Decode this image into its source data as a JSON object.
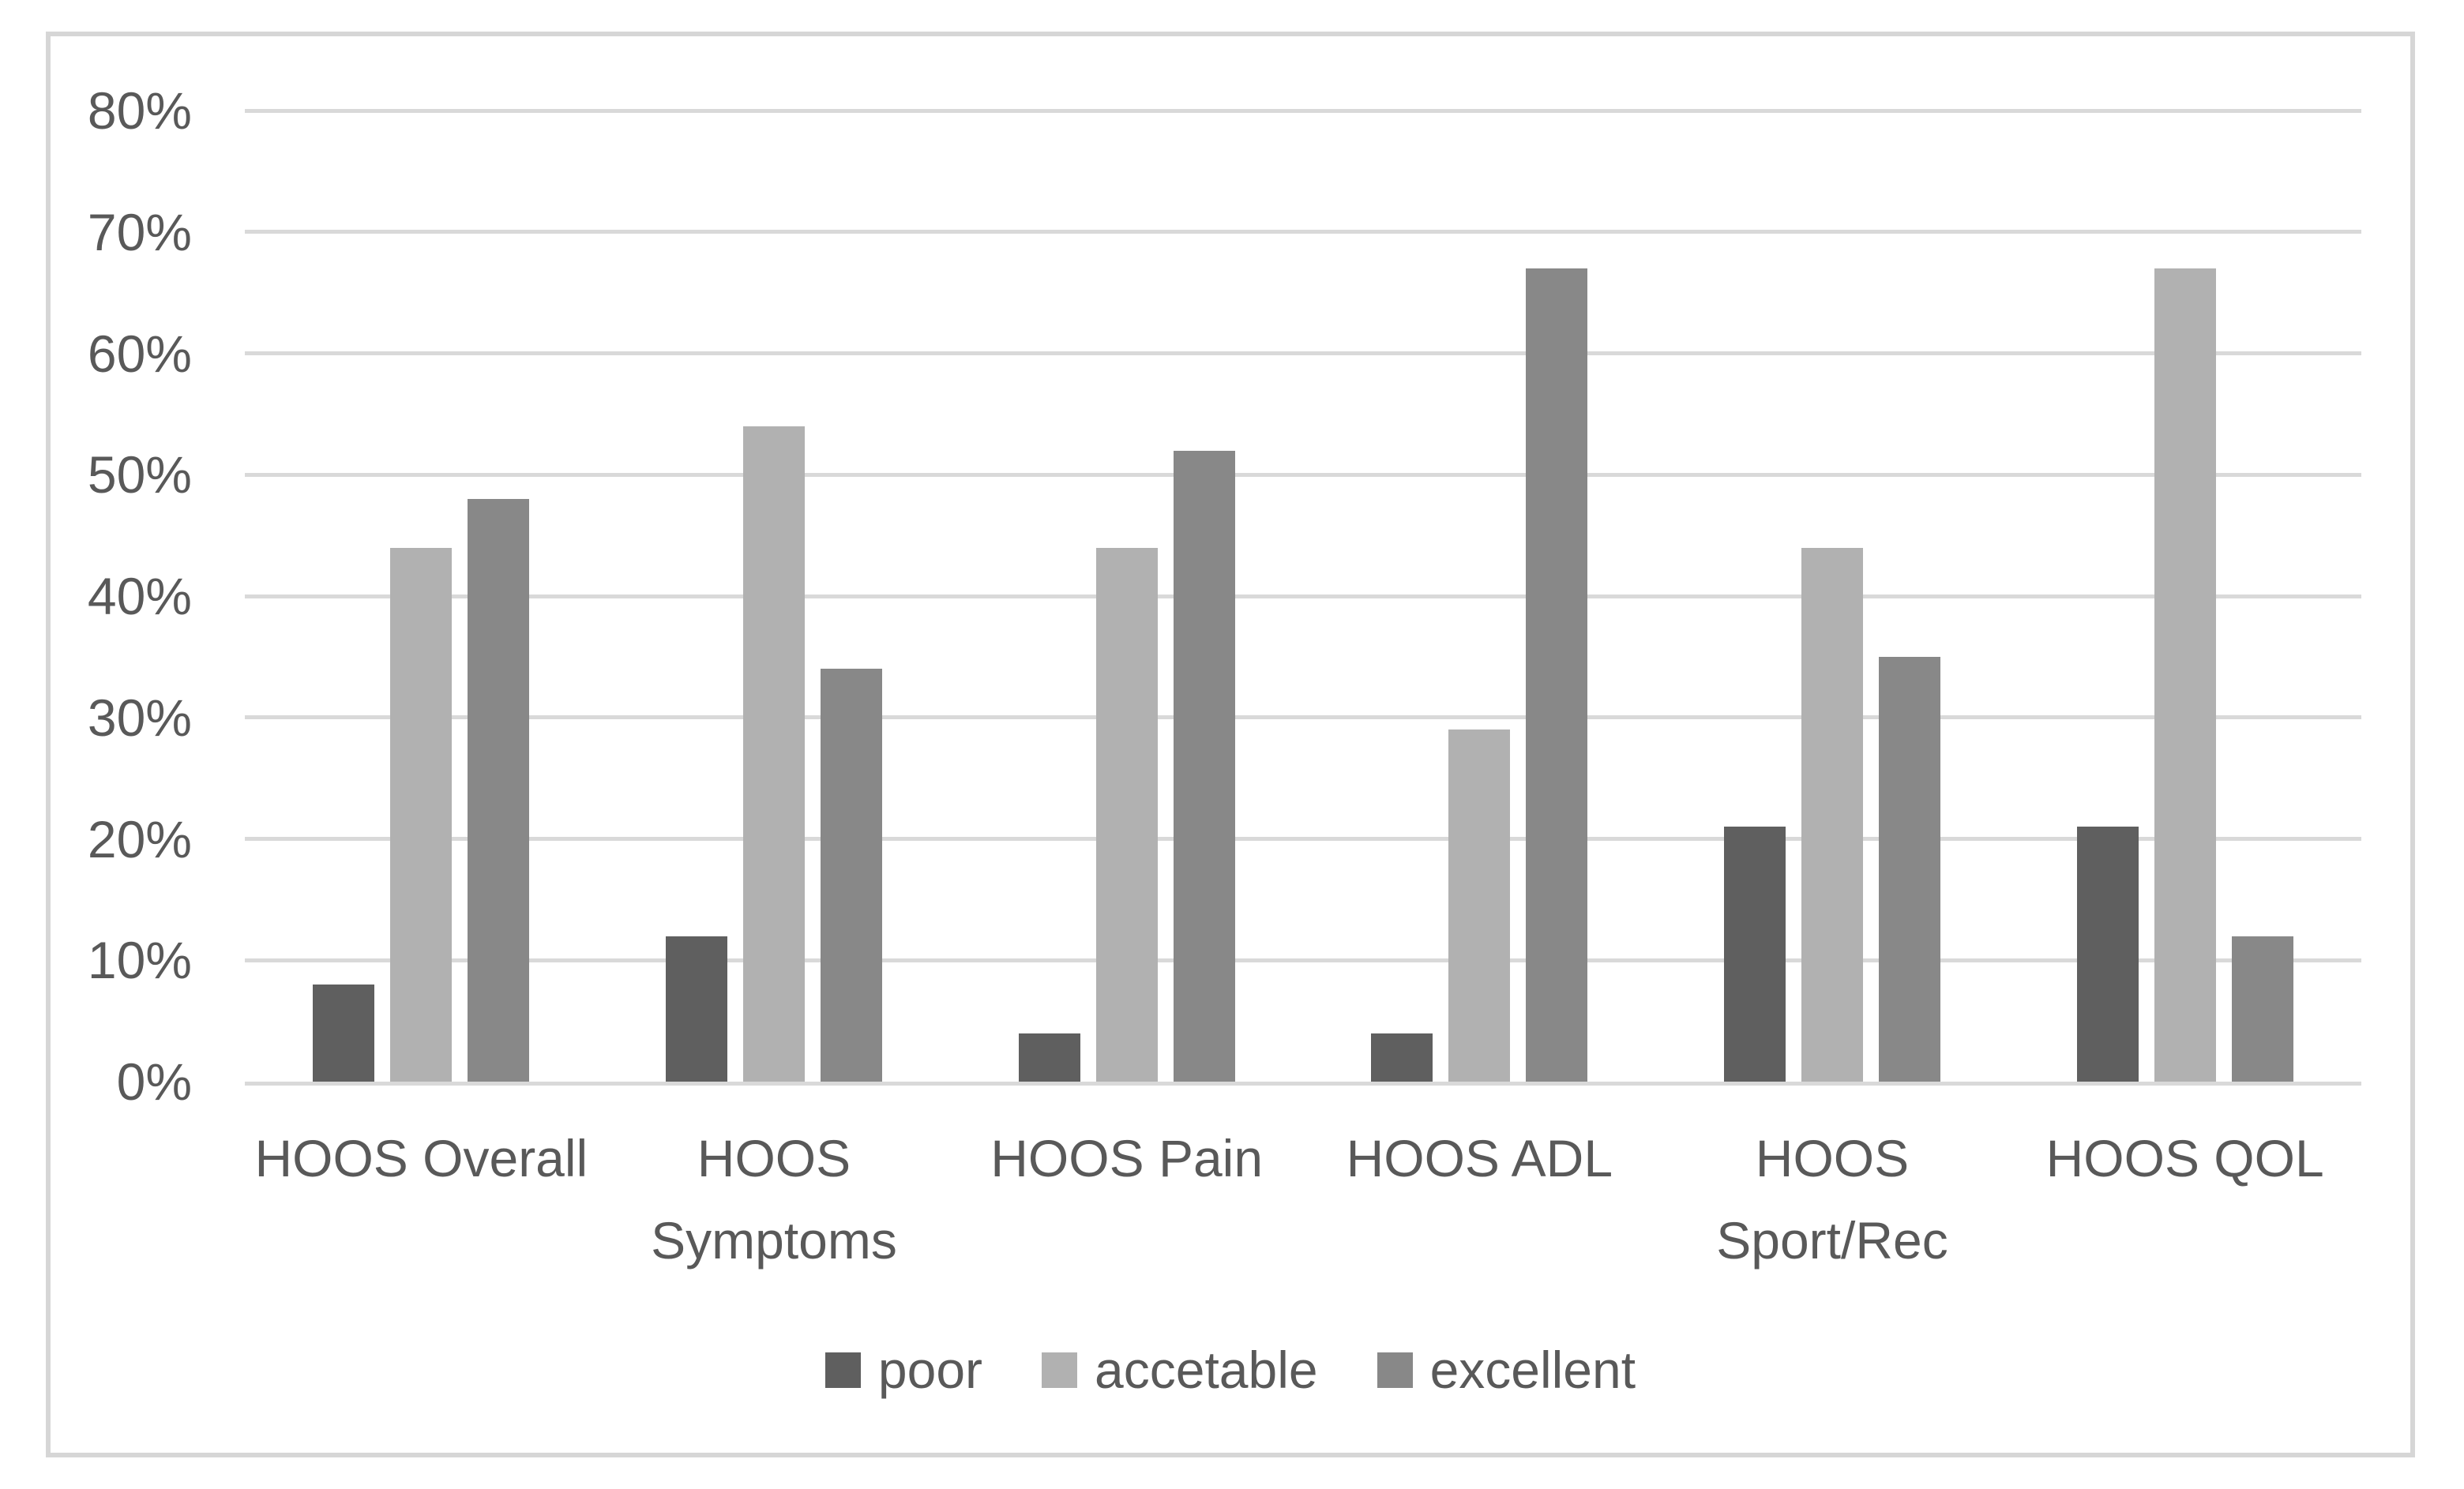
{
  "chart_data": {
    "type": "bar",
    "title": "",
    "xlabel": "",
    "ylabel": "",
    "categories": [
      "HOOS Overall",
      "HOOS Symptoms",
      "HOOS Pain",
      "HOOS ADL",
      "HOOS Sport/Rec",
      "HOOS QOL"
    ],
    "category_display_lines": [
      [
        "HOOS Overall"
      ],
      [
        "HOOS",
        "Symptoms"
      ],
      [
        "HOOS Pain"
      ],
      [
        "HOOS ADL"
      ],
      [
        "HOOS",
        "Sport/Rec"
      ],
      [
        "HOOS QOL"
      ]
    ],
    "series": [
      {
        "name": "poor",
        "color": "#5f5f5f",
        "values": [
          8,
          12,
          4,
          4,
          21,
          21
        ]
      },
      {
        "name": "accetable",
        "color": "#b1b1b1",
        "values": [
          44,
          54,
          44,
          29,
          44,
          67
        ]
      },
      {
        "name": "excellent",
        "color": "#888888",
        "values": [
          48,
          34,
          52,
          67,
          35,
          12
        ]
      }
    ],
    "ylim": [
      0,
      80
    ],
    "y_tick_labels": [
      "0%",
      "10%",
      "20%",
      "30%",
      "40%",
      "50%",
      "60%",
      "70%",
      "80%"
    ],
    "y_tick_values": [
      0,
      10,
      20,
      30,
      40,
      50,
      60,
      70,
      80
    ],
    "grid": "horizontal",
    "legend_position": "bottom",
    "legend_entries": [
      "poor",
      "accetable",
      "excellent"
    ]
  },
  "colors": {
    "background": "#ffffff",
    "frame_border": "#d6d6d6",
    "gridline": "#d9d9d9",
    "axis_text": "#595959",
    "series_poor": "#5f5f5f",
    "series_accetable": "#b1b1b1",
    "series_excellent": "#888888"
  }
}
